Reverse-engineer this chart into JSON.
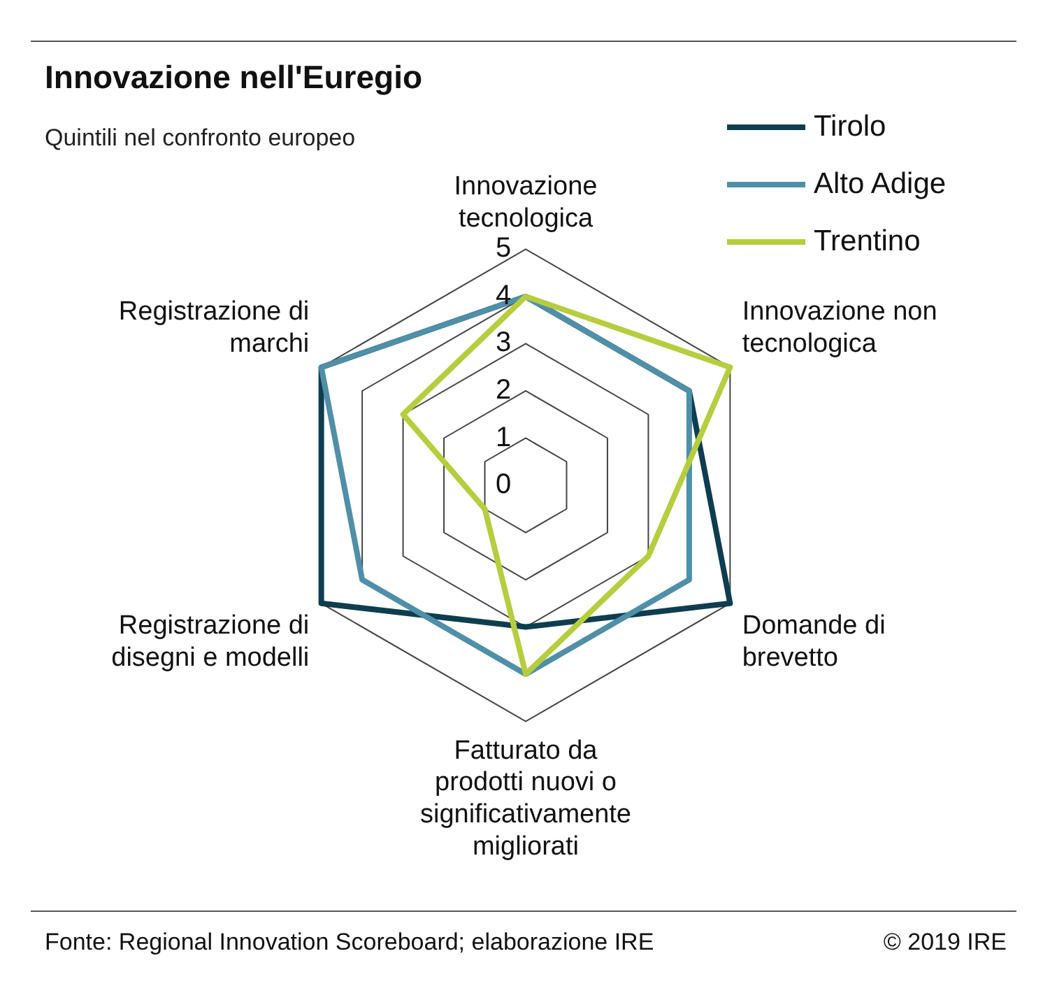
{
  "chart_data": {
    "type": "radar",
    "title": "Innovazione nell'Euregio",
    "subtitle": "Quintili nel confronto europeo",
    "categories": [
      "Innovazione tecnologica",
      "Innovazione non tecnologica",
      "Domande di brevetto",
      "Fatturato da prodotti nuovi o significativamente migliorati",
      "Registrazione di disegni e modelli",
      "Registrazione di marchi"
    ],
    "series": [
      {
        "name": "Tirolo",
        "color": "#0e3d50",
        "values": [
          4,
          4,
          5,
          3,
          5,
          5
        ]
      },
      {
        "name": "Alto Adige",
        "color": "#4f8fa7",
        "values": [
          4,
          4,
          4,
          4,
          4,
          5
        ]
      },
      {
        "name": "Trentino",
        "color": "#b6cd3e",
        "values": [
          4,
          5,
          3,
          4,
          1,
          3
        ]
      }
    ],
    "ylim": [
      0,
      5
    ],
    "yticks": [
      0,
      1,
      2,
      3,
      4,
      5
    ],
    "grid": true,
    "legend": "top right",
    "marker": "none",
    "line_style": "solid",
    "annotations": [
      "Fonte: Regional Innovation Scoreboard; elaborazione IRE",
      "© 2019 IRE"
    ]
  }
}
